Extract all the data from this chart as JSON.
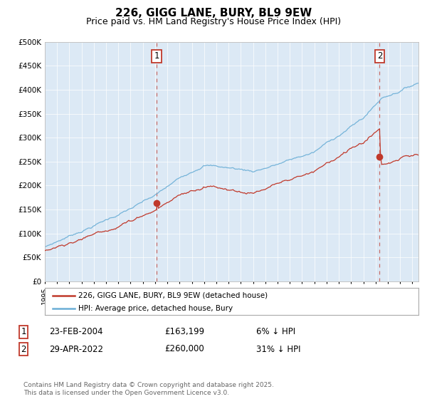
{
  "title": "226, GIGG LANE, BURY, BL9 9EW",
  "subtitle": "Price paid vs. HM Land Registry's House Price Index (HPI)",
  "title_fontsize": 11,
  "subtitle_fontsize": 9,
  "background_color": "#ffffff",
  "plot_bg_color": "#dce9f5",
  "hpi_color": "#6aaed6",
  "price_color": "#c0392b",
  "sale1_date_num": 2004.13,
  "sale1_price": 163199,
  "sale2_date_num": 2022.33,
  "sale2_price": 260000,
  "legend_entries": [
    "226, GIGG LANE, BURY, BL9 9EW (detached house)",
    "HPI: Average price, detached house, Bury"
  ],
  "footer": "Contains HM Land Registry data © Crown copyright and database right 2025.\nThis data is licensed under the Open Government Licence v3.0.",
  "xmin": 1995.0,
  "xmax": 2025.5,
  "ylim": [
    0,
    500000
  ],
  "yticks": [
    0,
    50000,
    100000,
    150000,
    200000,
    250000,
    300000,
    350000,
    400000,
    450000,
    500000
  ],
  "ytick_labels": [
    "£0",
    "£50K",
    "£100K",
    "£150K",
    "£200K",
    "£250K",
    "£300K",
    "£350K",
    "£400K",
    "£450K",
    "£500K"
  ]
}
